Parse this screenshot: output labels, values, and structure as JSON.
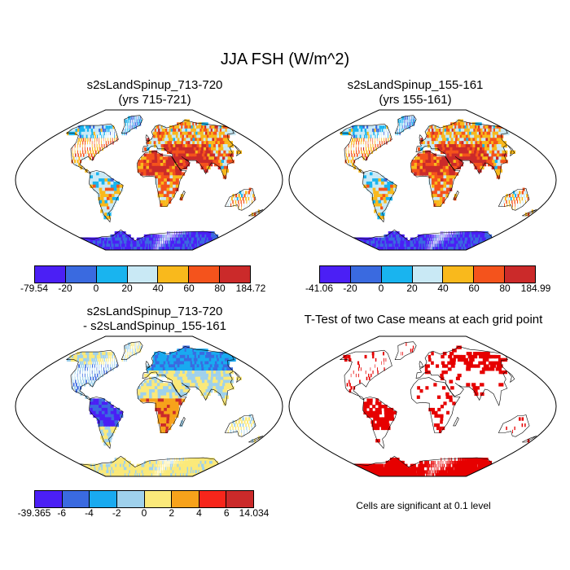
{
  "figure": {
    "title": "JJA FSH (W/m^2)"
  },
  "panels": [
    {
      "id": "case1",
      "title_line1": "s2sLandSpinup_713-720",
      "title_line2": "(yrs 715-721)",
      "colorbar": {
        "colors": [
          "#4b1ff5",
          "#3a6ae0",
          "#19b4ef",
          "#c9e9f5",
          "#f9b91c",
          "#f4531c",
          "#cb2a2a"
        ],
        "labels": [
          "-79.54",
          "-20",
          "0",
          "20",
          "40",
          "60",
          "80",
          "184.72"
        ]
      }
    },
    {
      "id": "case2",
      "title_line1": "s2sLandSpinup_155-161",
      "title_line2": "(yrs 155-161)",
      "colorbar": {
        "colors": [
          "#4b1ff5",
          "#3a6ae0",
          "#19b4ef",
          "#c9e9f5",
          "#f9b91c",
          "#f4531c",
          "#cb2a2a"
        ],
        "labels": [
          "-41.06",
          "-20",
          "0",
          "20",
          "40",
          "60",
          "80",
          "184.99"
        ]
      }
    },
    {
      "id": "diff",
      "title_line1": "s2sLandSpinup_713-720",
      "title_line2": "- s2sLandSpinup_155-161",
      "colorbar": {
        "colors": [
          "#4b1ff5",
          "#3a6ae0",
          "#19aaf0",
          "#9fd1ec",
          "#fbe97a",
          "#f7a21b",
          "#f7261b",
          "#cb2a2a"
        ],
        "labels": [
          "-39.365",
          "-6",
          "-4",
          "-2",
          "0",
          "2",
          "4",
          "6",
          "14.034"
        ]
      }
    },
    {
      "id": "ttest",
      "title_line1": "T-Test of two Case means at each grid point",
      "note": "Cells are significant at 0.1 level",
      "significant_color": "#e60000"
    }
  ]
}
